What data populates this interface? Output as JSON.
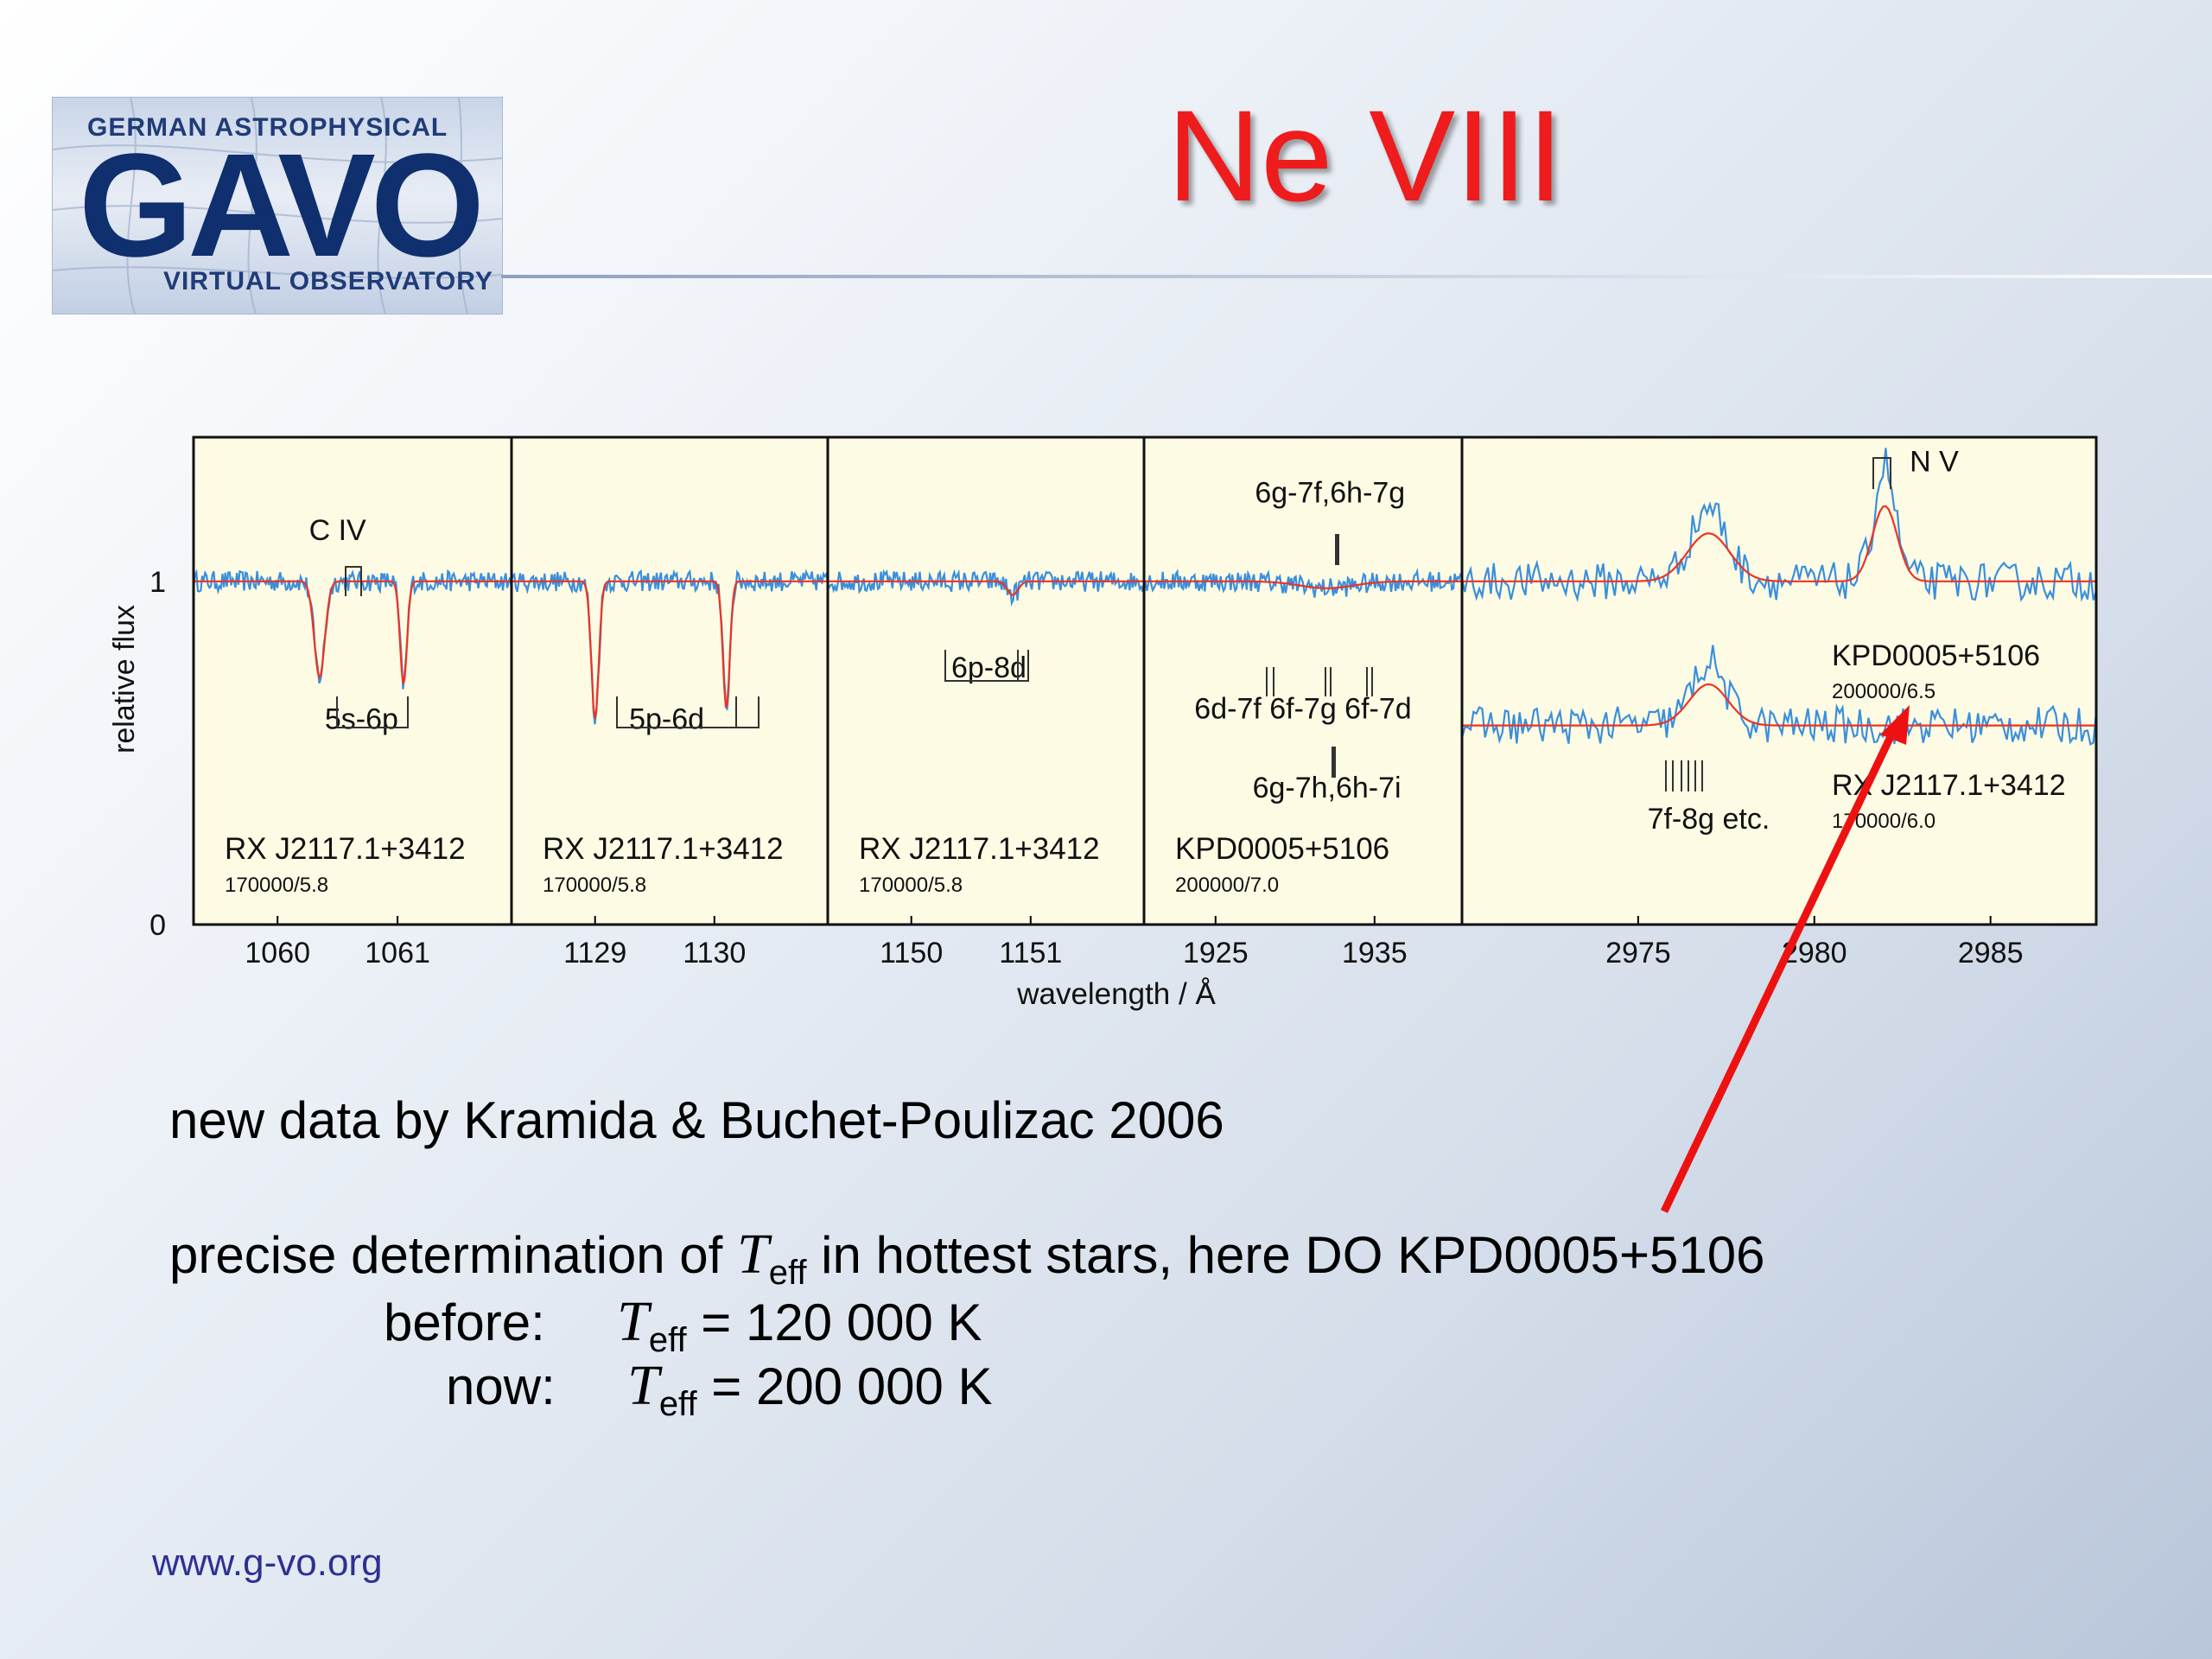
{
  "logo": {
    "top_text": "GERMAN ASTROPHYSICAL",
    "main_text": "GAVO",
    "bottom_text": "VIRTUAL OBSERVATORY"
  },
  "slide": {
    "title": "Ne VIII",
    "footer_url": "www.g-vo.org"
  },
  "text": {
    "line1": "new data by Kramida & Buchet-Poulizac 2006",
    "line2_pre": "precise determination of",
    "line2_post": "in hottest stars, here DO KPD0005+5106",
    "teff_T": "T",
    "teff_sub": "eff",
    "before_label": "before:",
    "before_value": "= 120 000 K",
    "now_label": "now:",
    "now_value": "= 200 000 K"
  },
  "colors": {
    "model": "#ee3322",
    "observed": "#3a8fdc",
    "arrow": "#ee1111",
    "panel_bg": "#fdfbe4"
  },
  "chart_data": {
    "type": "line",
    "ylabel": "relative flux",
    "xlabel": "wavelength / Å",
    "ylim": [
      0,
      1.42
    ],
    "yticks": [
      0,
      1
    ],
    "panels": [
      {
        "xlim": [
          1059.3,
          1061.95
        ],
        "xticks": [
          1060,
          1061
        ],
        "dips": [
          [
            1060.35,
            0.72,
            0.2
          ],
          [
            1061.05,
            0.7,
            0.13
          ]
        ],
        "annotations": [
          {
            "text": "C IV",
            "x": 1060.5,
            "y": 1.12
          },
          {
            "text": "5s-6p",
            "x": 1060.7,
            "y": 0.57
          }
        ],
        "star": "RX J2117.1+3412",
        "params": "170000/5.8"
      },
      {
        "xlim": [
          1128.3,
          1130.95
        ],
        "xticks": [
          1129,
          1130
        ],
        "dips": [
          [
            1129.0,
            0.6,
            0.14
          ],
          [
            1130.1,
            0.63,
            0.13
          ]
        ],
        "annotations": [
          {
            "text": "5p-6d",
            "x": 1129.6,
            "y": 0.57
          }
        ],
        "star": "RX J2117.1+3412",
        "params": "170000/5.8"
      },
      {
        "xlim": [
          1149.3,
          1151.95
        ],
        "xticks": [
          1150,
          1151
        ],
        "dips": [
          [
            1150.85,
            0.96,
            0.2
          ]
        ],
        "annotations": [
          {
            "text": "6p-8d",
            "x": 1150.65,
            "y": 0.72
          }
        ],
        "star": "RX J2117.1+3412",
        "params": "170000/5.8"
      },
      {
        "xlim": [
          1920.5,
          1940.5
        ],
        "xticks": [
          1925,
          1935
        ],
        "dips": [
          [
            1932.0,
            0.98,
            1.0
          ]
        ],
        "annotations": [
          {
            "text": "6g-7f,6h-7g",
            "x": 1932.2,
            "y": 1.23
          },
          {
            "text": "6d-7f 6f-7g 6f-7d",
            "x": 1930.5,
            "y": 0.6
          },
          {
            "text": "6g-7h,6h-7i",
            "x": 1932.0,
            "y": 0.37
          }
        ],
        "star": "KPD0005+5106",
        "params": "200000/7.0"
      },
      {
        "xlim": [
          2970.0,
          2988.0
        ],
        "xticks": [
          2975,
          2980,
          2985
        ],
        "series": [
          {
            "label": "KPD0005+5106",
            "params": "200000/6.5",
            "offset": 0.0,
            "emissions": [
              [
                2977.0,
                0.14,
                0.6
              ],
              [
                2982.0,
                0.22,
                0.35
              ]
            ]
          },
          {
            "label": "RX J2117.1+3412",
            "params": "170000/6.0",
            "offset": -0.42,
            "emissions": [
              [
                2977.0,
                0.12,
                0.55
              ]
            ]
          }
        ],
        "annotations": [
          {
            "text": "N V",
            "x": 2983.4,
            "y": 1.32
          },
          {
            "text": "7f-8g etc.",
            "x": 2977.0,
            "y": 0.28
          }
        ]
      }
    ]
  }
}
